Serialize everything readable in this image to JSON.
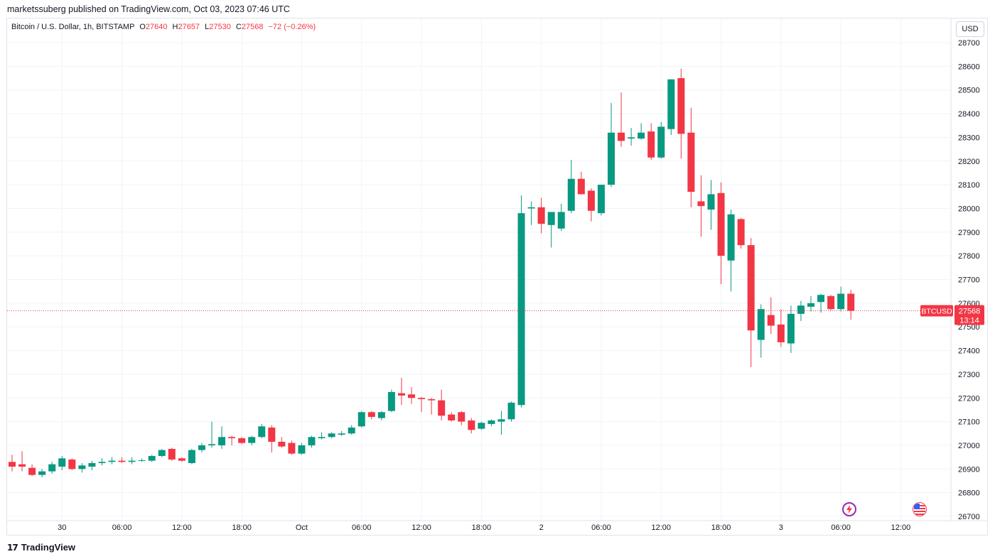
{
  "header": {
    "published": "marketssuberg published on TradingView.com, Oct 03, 2023 07:46 UTC"
  },
  "legend": {
    "title": "Bitcoin / U.S. Dollar, 1h, BITSTAMP",
    "o_label": "O",
    "o_value": "27640",
    "h_label": "H",
    "h_value": "27657",
    "l_label": "L",
    "l_value": "27530",
    "c_label": "C",
    "c_value": "27568",
    "change": "−72 (−0.26%)"
  },
  "currency_button": {
    "label": "USD"
  },
  "price_tag": {
    "symbol": "BTCUSD",
    "price": "27568",
    "countdown": "13:14"
  },
  "footer": {
    "brand": "TradingView"
  },
  "icons": {
    "events": "lightning-icon",
    "economic": "us-flag-icon"
  },
  "colors": {
    "up": "#089981",
    "down": "#f23645",
    "grid": "#f0f3fa",
    "text": "#131722"
  },
  "chart_data": {
    "type": "candlestick",
    "title": "Bitcoin / U.S. Dollar, 1h, BITSTAMP",
    "interval": "1h",
    "y_ticks": [
      26700,
      26800,
      26900,
      27000,
      27100,
      27200,
      27300,
      27400,
      27500,
      27600,
      27700,
      27800,
      27900,
      28000,
      28100,
      28200,
      28300,
      28400,
      28500,
      28600,
      28700
    ],
    "ylim": [
      26670,
      28730
    ],
    "x_ticks": [
      {
        "label": "30",
        "index": 5
      },
      {
        "label": "06:00",
        "index": 11
      },
      {
        "label": "12:00",
        "index": 17
      },
      {
        "label": "18:00",
        "index": 23
      },
      {
        "label": "Oct",
        "index": 29
      },
      {
        "label": "06:00",
        "index": 35
      },
      {
        "label": "12:00",
        "index": 41
      },
      {
        "label": "18:00",
        "index": 47
      },
      {
        "label": "2",
        "index": 53
      },
      {
        "label": "06:00",
        "index": 59
      },
      {
        "label": "12:00",
        "index": 65
      },
      {
        "label": "18:00",
        "index": 71
      },
      {
        "label": "3",
        "index": 77
      },
      {
        "label": "06:00",
        "index": 83
      },
      {
        "label": "12:00",
        "index": 89
      }
    ],
    "last_price": 27568,
    "grid": true,
    "candles": [
      {
        "o": 26930,
        "h": 26960,
        "l": 26890,
        "c": 26910
      },
      {
        "o": 26920,
        "h": 26975,
        "l": 26890,
        "c": 26910
      },
      {
        "o": 26905,
        "h": 26920,
        "l": 26870,
        "c": 26875
      },
      {
        "o": 26875,
        "h": 26900,
        "l": 26865,
        "c": 26890
      },
      {
        "o": 26890,
        "h": 26930,
        "l": 26880,
        "c": 26920
      },
      {
        "o": 26910,
        "h": 26955,
        "l": 26895,
        "c": 26945
      },
      {
        "o": 26940,
        "h": 26945,
        "l": 26895,
        "c": 26900
      },
      {
        "o": 26900,
        "h": 26925,
        "l": 26885,
        "c": 26915
      },
      {
        "o": 26910,
        "h": 26935,
        "l": 26895,
        "c": 26925
      },
      {
        "o": 26925,
        "h": 26945,
        "l": 26915,
        "c": 26930
      },
      {
        "o": 26930,
        "h": 26950,
        "l": 26920,
        "c": 26935
      },
      {
        "o": 26935,
        "h": 26950,
        "l": 26925,
        "c": 26930
      },
      {
        "o": 26930,
        "h": 26950,
        "l": 26920,
        "c": 26935
      },
      {
        "o": 26935,
        "h": 26945,
        "l": 26930,
        "c": 26937
      },
      {
        "o": 26935,
        "h": 26960,
        "l": 26930,
        "c": 26955
      },
      {
        "o": 26955,
        "h": 26985,
        "l": 26950,
        "c": 26980
      },
      {
        "o": 26985,
        "h": 26990,
        "l": 26935,
        "c": 26940
      },
      {
        "o": 26945,
        "h": 26950,
        "l": 26930,
        "c": 26935
      },
      {
        "o": 26925,
        "h": 26985,
        "l": 26920,
        "c": 26980
      },
      {
        "o": 26980,
        "h": 27010,
        "l": 26970,
        "c": 27000
      },
      {
        "o": 27000,
        "h": 27100,
        "l": 26990,
        "c": 27005
      },
      {
        "o": 27000,
        "h": 27080,
        "l": 26985,
        "c": 27035
      },
      {
        "o": 27035,
        "h": 27040,
        "l": 27000,
        "c": 27030
      },
      {
        "o": 27030,
        "h": 27035,
        "l": 27005,
        "c": 27010
      },
      {
        "o": 27010,
        "h": 27040,
        "l": 27000,
        "c": 27035
      },
      {
        "o": 27035,
        "h": 27090,
        "l": 27030,
        "c": 27080
      },
      {
        "o": 27075,
        "h": 27085,
        "l": 26970,
        "c": 27015
      },
      {
        "o": 27015,
        "h": 27035,
        "l": 26990,
        "c": 26995
      },
      {
        "o": 27010,
        "h": 27020,
        "l": 26960,
        "c": 26965
      },
      {
        "o": 26965,
        "h": 27010,
        "l": 26960,
        "c": 27000
      },
      {
        "o": 27000,
        "h": 27040,
        "l": 26990,
        "c": 27035
      },
      {
        "o": 27030,
        "h": 27055,
        "l": 27025,
        "c": 27035
      },
      {
        "o": 27035,
        "h": 27055,
        "l": 27030,
        "c": 27050
      },
      {
        "o": 27045,
        "h": 27060,
        "l": 27040,
        "c": 27050
      },
      {
        "o": 27050,
        "h": 27085,
        "l": 27045,
        "c": 27075
      },
      {
        "o": 27080,
        "h": 27145,
        "l": 27075,
        "c": 27140
      },
      {
        "o": 27140,
        "h": 27145,
        "l": 27110,
        "c": 27120
      },
      {
        "o": 27115,
        "h": 27145,
        "l": 27105,
        "c": 27140
      },
      {
        "o": 27145,
        "h": 27235,
        "l": 27140,
        "c": 27225
      },
      {
        "o": 27220,
        "h": 27285,
        "l": 27170,
        "c": 27210
      },
      {
        "o": 27215,
        "h": 27245,
        "l": 27175,
        "c": 27200
      },
      {
        "o": 27200,
        "h": 27205,
        "l": 27140,
        "c": 27195
      },
      {
        "o": 27195,
        "h": 27200,
        "l": 27130,
        "c": 27190
      },
      {
        "o": 27190,
        "h": 27235,
        "l": 27105,
        "c": 27125
      },
      {
        "o": 27130,
        "h": 27140,
        "l": 27100,
        "c": 27105
      },
      {
        "o": 27140,
        "h": 27145,
        "l": 27085,
        "c": 27100
      },
      {
        "o": 27105,
        "h": 27115,
        "l": 27050,
        "c": 27065
      },
      {
        "o": 27070,
        "h": 27100,
        "l": 27065,
        "c": 27095
      },
      {
        "o": 27090,
        "h": 27110,
        "l": 27080,
        "c": 27105
      },
      {
        "o": 27100,
        "h": 27145,
        "l": 27045,
        "c": 27110
      },
      {
        "o": 27110,
        "h": 27185,
        "l": 27100,
        "c": 27180
      },
      {
        "o": 27170,
        "h": 28055,
        "l": 27160,
        "c": 27980
      },
      {
        "o": 28000,
        "h": 28030,
        "l": 27930,
        "c": 28005
      },
      {
        "o": 28005,
        "h": 28045,
        "l": 27895,
        "c": 27935
      },
      {
        "o": 27930,
        "h": 27975,
        "l": 27835,
        "c": 27985
      },
      {
        "o": 27915,
        "h": 28020,
        "l": 27905,
        "c": 27985
      },
      {
        "o": 27990,
        "h": 28205,
        "l": 27980,
        "c": 28125
      },
      {
        "o": 28125,
        "h": 28155,
        "l": 28060,
        "c": 28060
      },
      {
        "o": 28075,
        "h": 28085,
        "l": 27945,
        "c": 27990
      },
      {
        "o": 27980,
        "h": 28100,
        "l": 27970,
        "c": 28100
      },
      {
        "o": 28100,
        "h": 28445,
        "l": 28090,
        "c": 28320
      },
      {
        "o": 28320,
        "h": 28490,
        "l": 28260,
        "c": 28285
      },
      {
        "o": 28295,
        "h": 28340,
        "l": 28265,
        "c": 28300
      },
      {
        "o": 28295,
        "h": 28360,
        "l": 28290,
        "c": 28320
      },
      {
        "o": 28325,
        "h": 28360,
        "l": 28205,
        "c": 28215
      },
      {
        "o": 28215,
        "h": 28365,
        "l": 28210,
        "c": 28345
      },
      {
        "o": 28335,
        "h": 28545,
        "l": 28310,
        "c": 28545
      },
      {
        "o": 28550,
        "h": 28590,
        "l": 28210,
        "c": 28315
      },
      {
        "o": 28320,
        "h": 28425,
        "l": 28005,
        "c": 28070
      },
      {
        "o": 28030,
        "h": 28140,
        "l": 27880,
        "c": 28010
      },
      {
        "o": 27995,
        "h": 28120,
        "l": 27910,
        "c": 28060
      },
      {
        "o": 28065,
        "h": 28110,
        "l": 27680,
        "c": 27800
      },
      {
        "o": 27780,
        "h": 27995,
        "l": 27650,
        "c": 27975
      },
      {
        "o": 27955,
        "h": 27960,
        "l": 27830,
        "c": 27845
      },
      {
        "o": 27845,
        "h": 27875,
        "l": 27330,
        "c": 27485
      },
      {
        "o": 27445,
        "h": 27595,
        "l": 27370,
        "c": 27575
      },
      {
        "o": 27550,
        "h": 27625,
        "l": 27470,
        "c": 27505
      },
      {
        "o": 27510,
        "h": 27575,
        "l": 27415,
        "c": 27435
      },
      {
        "o": 27430,
        "h": 27590,
        "l": 27390,
        "c": 27555
      },
      {
        "o": 27555,
        "h": 27610,
        "l": 27525,
        "c": 27590
      },
      {
        "o": 27585,
        "h": 27630,
        "l": 27565,
        "c": 27600
      },
      {
        "o": 27605,
        "h": 27640,
        "l": 27560,
        "c": 27635
      },
      {
        "o": 27630,
        "h": 27635,
        "l": 27570,
        "c": 27575
      },
      {
        "o": 27575,
        "h": 27670,
        "l": 27565,
        "c": 27640
      },
      {
        "o": 27640,
        "h": 27657,
        "l": 27530,
        "c": 27568
      }
    ]
  }
}
